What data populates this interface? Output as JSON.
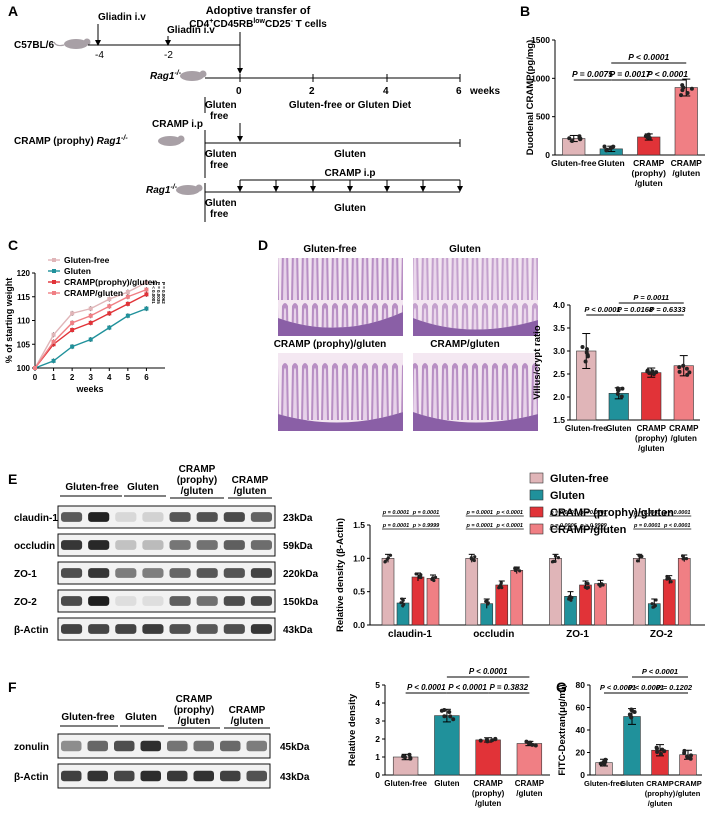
{
  "panels": {
    "A": "A",
    "B": "B",
    "C": "C",
    "D": "D",
    "E": "E",
    "F": "F",
    "G": "G"
  },
  "colors": {
    "gluten_free": "#e0b5b8",
    "gluten": "#20919b",
    "cramp_prophy": "#e13338",
    "cramp_gluten": "#f07f84",
    "mouse": "#a8a0a6",
    "dot": "#222222"
  },
  "panel_a": {
    "header_line1": "Adoptive transfer of",
    "header_line2_a": "CD4",
    "header_line2_sup1": "+",
    "header_line2_b": "CD45RB",
    "header_line2_sup2": "low",
    "header_line2_c": "CD25",
    "header_line2_sup3": "-",
    "header_line2_d": " T cells",
    "c57": "C57BL/6",
    "gliadin1": "Gliadin i.v",
    "gliadin2": "Gliadin i.v",
    "t_neg4": "-4",
    "t_neg2": "-2",
    "rag": "Rag1",
    "rag_sup": "-/-",
    "ticks": [
      "0",
      "2",
      "4",
      "6"
    ],
    "weeks": "weeks",
    "gluten_free_label": "Gluten",
    "gluten_free_label2": "free",
    "diet1": "Gluten-free or Gluten Diet",
    "cramp_prophy_label": "CRAMP (prophy)",
    "cramp_ip1": "CRAMP i.p",
    "diet2": "Gluten",
    "diet3": "Gluten",
    "cramp_ip2": "CRAMP i.p"
  },
  "chart_data": [
    {
      "panel": "B",
      "type": "bar",
      "ylabel": "Duodenal CRAMP(pg/mg)",
      "ylim": [
        0,
        1500
      ],
      "yticks": [
        "0",
        "500",
        "1000",
        "1500"
      ],
      "categories": [
        [
          "Gluten-free"
        ],
        [
          "Gluten"
        ],
        [
          "CRAMP",
          "(prophy)",
          "/gluten"
        ],
        [
          "CRAMP",
          "/gluten"
        ]
      ],
      "values": [
        215,
        80,
        235,
        880
      ],
      "errors": [
        40,
        35,
        40,
        110
      ],
      "annotations": [
        "P = 0.0075",
        "P = 0.0017",
        "P < 0.0001",
        "P < 0.0001"
      ]
    },
    {
      "panel": "C",
      "type": "line",
      "xlabel": "weeks",
      "ylabel": "% of starting weight",
      "xlim": [
        0,
        7
      ],
      "ylim": [
        100,
        120
      ],
      "xticks": [
        "0",
        "1",
        "2",
        "3",
        "4",
        "5",
        "6"
      ],
      "yticks": [
        "100",
        "105",
        "110",
        "115",
        "120"
      ],
      "series": [
        {
          "name": "Gluten-free",
          "values": [
            100,
            107,
            111.5,
            112.5,
            114.5,
            116,
            118
          ]
        },
        {
          "name": "Gluten",
          "values": [
            100,
            101.5,
            104.5,
            106,
            108.5,
            111,
            112.5
          ]
        },
        {
          "name": "CRAMP(prophy)/gluten",
          "values": [
            100,
            105,
            108,
            109.5,
            111.5,
            113.5,
            115.5
          ]
        },
        {
          "name": "CRAMP/gluten",
          "values": [
            100,
            105.5,
            109.5,
            111,
            113,
            115,
            116.5
          ]
        }
      ],
      "annotations": [
        "P < 0.0001",
        "P = 0.0035",
        "P = 0.0062"
      ]
    },
    {
      "panel": "D",
      "type": "bar",
      "ylabel": "Villus/crypt ratio",
      "ylim": [
        1.5,
        4.0
      ],
      "yticks": [
        "1.5",
        "2.0",
        "2.5",
        "3.0",
        "3.5",
        "4.0"
      ],
      "categories": [
        [
          "Gluten-free"
        ],
        [
          "Gluten"
        ],
        [
          "CRAMP",
          "(prophy)",
          "/gluten"
        ],
        [
          "CRAMP",
          "/gluten"
        ]
      ],
      "values": [
        3.0,
        2.08,
        2.53,
        2.68
      ],
      "errors": [
        0.38,
        0.12,
        0.1,
        0.22
      ],
      "annotations": [
        "P < 0.0001",
        "P = 0.0168",
        "P = 0.6333",
        "P = 0.0011"
      ],
      "micro_titles": [
        "Gluten-free",
        "Gluten",
        "CRAMP (prophy)/gluten",
        "CRAMP/gluten"
      ]
    },
    {
      "panel": "E",
      "type": "bar",
      "ylabel": "Relative density (β-Actin)",
      "ylim": [
        0,
        1.5
      ],
      "yticks": [
        "0.0",
        "0.5",
        "1.0",
        "1.5"
      ],
      "categories": [
        "claudin-1",
        "occludin",
        "ZO-1",
        "ZO-2"
      ],
      "series": [
        {
          "name": "Gluten-free",
          "values": [
            1.0,
            1.0,
            1.0,
            1.0
          ]
        },
        {
          "name": "Gluten",
          "values": [
            0.33,
            0.32,
            0.43,
            0.32
          ]
        },
        {
          "name": "CRAMP (prophy)/gluten",
          "values": [
            0.72,
            0.6,
            0.6,
            0.68
          ]
        },
        {
          "name": "CRAMP/gluten",
          "values": [
            0.7,
            0.82,
            0.62,
            1.0
          ]
        }
      ],
      "annotations_top": [
        "p = 0.0001",
        "p = 0.0001",
        "p = 0.0001",
        "p < 0.0001",
        "p = 0.0001",
        "p < 0.0001",
        "p = 0.0001",
        "p < 0.0001"
      ],
      "annotations_mid": [
        "p = 0.0001",
        "p > 0.9999",
        "p = 0.0001",
        "p < 0.0001",
        "p = 0.0006",
        "p > 0.9999",
        "p = 0.0001",
        "p < 0.0001"
      ]
    },
    {
      "panel": "F",
      "type": "bar",
      "ylabel": "Relative density",
      "ylim": [
        0,
        5
      ],
      "yticks": [
        "0",
        "1",
        "2",
        "3",
        "4",
        "5"
      ],
      "categories": [
        [
          "Gluten-free"
        ],
        [
          "Gluten"
        ],
        [
          "CRAMP",
          "(prophy)",
          "/gluten"
        ],
        [
          "CRAMP",
          "/gluten"
        ]
      ],
      "values": [
        1.0,
        3.3,
        1.95,
        1.75
      ],
      "errors": [
        0.15,
        0.35,
        0.12,
        0.12
      ],
      "annotations": [
        "P < 0.0001",
        "P < 0.0001",
        "P = 0.3832",
        "P < 0.0001"
      ]
    },
    {
      "panel": "G",
      "type": "bar",
      "ylabel": "FITC-Dextran(μg/ml)",
      "ylim": [
        0,
        80
      ],
      "yticks": [
        "0",
        "20",
        "40",
        "60",
        "80"
      ],
      "categories": [
        [
          "Gluten-free"
        ],
        [
          "Gluten"
        ],
        [
          "CRAMP",
          "(prophy)",
          "/gluten"
        ],
        [
          "CRAMP",
          "/gluten"
        ]
      ],
      "values": [
        11,
        52,
        22,
        18
      ],
      "errors": [
        3,
        7,
        5,
        4
      ],
      "annotations": [
        "P < 0.0001",
        "P < 0.0001",
        "P = 0.1202",
        "P < 0.0001"
      ]
    }
  ],
  "legend_e": [
    "Gluten-free",
    "Gluten",
    "CRAMP (prophy)/gluten",
    "CRAMP/gluten"
  ],
  "blot_e": {
    "groups": [
      "Gluten-free",
      "Gluten",
      "CRAMP",
      "(prophy)",
      "/gluten",
      "CRAMP",
      "/gluten"
    ],
    "rows": [
      "claudin-1",
      "occludin",
      "ZO-1",
      "ZO-2",
      "β-Actin"
    ],
    "kda": [
      "23kDa",
      "59kDa",
      "220kDa",
      "150kDa",
      "43kDa"
    ]
  },
  "blot_f": {
    "groups": [
      "Gluten-free",
      "Gluten",
      "CRAMP",
      "(prophy)",
      "/gluten",
      "CRAMP",
      "/gluten"
    ],
    "rows": [
      "zonulin",
      "β-Actin"
    ],
    "kda": [
      "45kDa",
      "43kDa"
    ]
  }
}
